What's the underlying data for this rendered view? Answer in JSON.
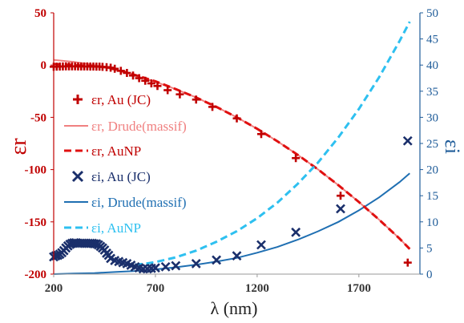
{
  "chart_data": {
    "type": "line",
    "xlabel": "λ (nm)",
    "ylabel_left": "εr",
    "ylabel_right": "εi",
    "xlim": [
      200,
      2000
    ],
    "ylim_left": [
      -200,
      50
    ],
    "ylim_right": [
      0,
      50
    ],
    "x_ticks": [
      200,
      700,
      1200,
      1700
    ],
    "y_left_ticks": [
      50,
      0,
      -50,
      -100,
      -150,
      -200
    ],
    "y_right_ticks": [
      0,
      5,
      10,
      15,
      20,
      25,
      30,
      35,
      40,
      45,
      50
    ],
    "grid": false,
    "legend_position": "left",
    "colors": {
      "eps_r_jc": "#c00000",
      "eps_r_drude": "#f08080",
      "eps_r_aunp": "#e01010",
      "eps_i_jc": "#1a2f6b",
      "eps_i_drude": "#1f6fb2",
      "eps_i_aunp": "#2ec0f0"
    },
    "series": [
      {
        "name": "εr, Au (JC)",
        "axis": "left",
        "style": "plus-markers",
        "x": [
          200,
          215,
          230,
          245,
          260,
          275,
          290,
          305,
          320,
          335,
          350,
          365,
          380,
          395,
          410,
          425,
          440,
          460,
          480,
          500,
          530,
          560,
          590,
          620,
          650,
          680,
          710,
          760,
          820,
          900,
          980,
          1100,
          1220,
          1390,
          1610,
          1940
        ],
        "values": [
          -1.6,
          -1.5,
          -1.4,
          -1.3,
          -1.2,
          -1.2,
          -1.2,
          -1.2,
          -1.3,
          -1.3,
          -1.3,
          -1.3,
          -1.4,
          -1.4,
          -1.5,
          -1.5,
          -1.7,
          -2.0,
          -2.5,
          -3.5,
          -5.5,
          -7.5,
          -10,
          -12.5,
          -15,
          -17.5,
          -20,
          -24,
          -28,
          -33,
          -40,
          -51,
          -66,
          -89,
          -125,
          -189
        ]
      },
      {
        "name": "εr, Drude(massif)",
        "axis": "left",
        "style": "solid",
        "x": [
          200,
          250,
          300,
          350,
          400,
          450,
          500,
          550,
          600,
          650,
          700,
          800,
          900,
          1000,
          1100,
          1200,
          1300,
          1400,
          1500,
          1600,
          1700,
          1800,
          1900,
          1950
        ],
        "values": [
          5,
          4,
          3,
          1.5,
          0,
          -2,
          -4.5,
          -7,
          -10,
          -13,
          -16,
          -23,
          -31,
          -40,
          -50,
          -61,
          -73,
          -86,
          -100,
          -115,
          -131,
          -148,
          -166,
          -176
        ]
      },
      {
        "name": "εr, AuNP",
        "axis": "left",
        "style": "dashed",
        "x": [
          200,
          250,
          300,
          350,
          400,
          450,
          500,
          550,
          600,
          650,
          700,
          800,
          900,
          1000,
          1100,
          1200,
          1300,
          1400,
          1500,
          1600,
          1700,
          1800,
          1900,
          1950
        ],
        "values": [
          1,
          0.5,
          0,
          -0.5,
          -1,
          -2,
          -4,
          -6.5,
          -9.5,
          -12.5,
          -15.5,
          -23,
          -31,
          -40,
          -50,
          -61,
          -73,
          -86,
          -100,
          -115,
          -131,
          -148,
          -166,
          -176
        ]
      },
      {
        "name": "εi, Au (JC)",
        "axis": "right",
        "style": "x-markers",
        "x": [
          200,
          210,
          220,
          230,
          240,
          250,
          260,
          270,
          280,
          290,
          300,
          310,
          320,
          330,
          340,
          350,
          360,
          370,
          380,
          390,
          400,
          410,
          420,
          430,
          440,
          450,
          460,
          470,
          480,
          500,
          520,
          540,
          560,
          580,
          600,
          620,
          640,
          660,
          680,
          700,
          750,
          800,
          900,
          1000,
          1100,
          1220,
          1390,
          1610,
          1940
        ],
        "values": [
          3.3,
          3.5,
          3.6,
          3.8,
          4.1,
          4.5,
          5.0,
          5.4,
          5.7,
          5.9,
          6.0,
          6.0,
          5.9,
          5.9,
          5.9,
          5.9,
          5.9,
          5.9,
          5.9,
          5.9,
          5.8,
          5.8,
          5.6,
          5.3,
          5.0,
          4.6,
          4.0,
          3.6,
          3.0,
          2.6,
          2.4,
          2.2,
          2.0,
          1.7,
          1.4,
          1.2,
          1.0,
          1.0,
          1.1,
          1.2,
          1.4,
          1.6,
          2.0,
          2.7,
          3.5,
          5.6,
          8.0,
          12.5,
          25.5
        ]
      },
      {
        "name": "εi, Drude(massif)",
        "axis": "right",
        "style": "solid",
        "x": [
          200,
          300,
          400,
          500,
          600,
          700,
          800,
          900,
          1000,
          1100,
          1200,
          1300,
          1400,
          1500,
          1600,
          1700,
          1800,
          1900,
          1950
        ],
        "values": [
          0.0,
          0.1,
          0.2,
          0.4,
          0.6,
          0.9,
          1.3,
          1.8,
          2.4,
          3.1,
          4.1,
          5.2,
          6.6,
          8.2,
          10.0,
          12.2,
          14.7,
          17.6,
          19.3
        ]
      },
      {
        "name": "εi, AuNP",
        "axis": "right",
        "style": "dashed",
        "x": [
          600,
          650,
          700,
          800,
          900,
          1000,
          1100,
          1200,
          1300,
          1400,
          1500,
          1600,
          1700,
          1800,
          1900,
          1950
        ],
        "values": [
          1.8,
          2.0,
          2.3,
          3.2,
          4.5,
          6.2,
          8.2,
          10.7,
          13.7,
          17.3,
          21.4,
          26.2,
          31.6,
          37.7,
          44.6,
          48.3
        ]
      }
    ]
  }
}
